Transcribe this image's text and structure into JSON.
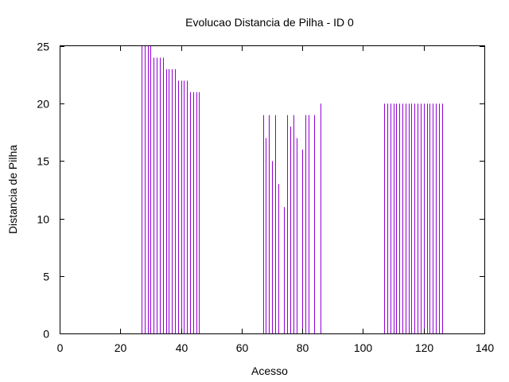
{
  "chart_data": {
    "type": "bar",
    "style": "impulses",
    "title": "Evolucao Distancia de Pilha - ID 0",
    "xlabel": "Acesso",
    "ylabel": "Distancia de Pilha",
    "xlim": [
      0,
      140
    ],
    "ylim": [
      0,
      25
    ],
    "xticks": [
      0,
      20,
      40,
      60,
      80,
      100,
      120,
      140
    ],
    "yticks": [
      0,
      5,
      10,
      15,
      20,
      25
    ],
    "grid": false,
    "legend": "none",
    "series_color": "#9400d3",
    "points": [
      {
        "x": 27,
        "y": 25
      },
      {
        "x": 28,
        "y": 25
      },
      {
        "x": 29,
        "y": 25
      },
      {
        "x": 30,
        "y": 25
      },
      {
        "x": 31,
        "y": 24
      },
      {
        "x": 32,
        "y": 24
      },
      {
        "x": 33,
        "y": 24
      },
      {
        "x": 34,
        "y": 24
      },
      {
        "x": 35,
        "y": 23
      },
      {
        "x": 36,
        "y": 23
      },
      {
        "x": 37,
        "y": 23
      },
      {
        "x": 38,
        "y": 23
      },
      {
        "x": 39,
        "y": 22
      },
      {
        "x": 40,
        "y": 22
      },
      {
        "x": 41,
        "y": 22
      },
      {
        "x": 42,
        "y": 22
      },
      {
        "x": 43,
        "y": 21
      },
      {
        "x": 44,
        "y": 21
      },
      {
        "x": 45,
        "y": 21
      },
      {
        "x": 46,
        "y": 21
      },
      {
        "x": 67,
        "y": 19
      },
      {
        "x": 68,
        "y": 17
      },
      {
        "x": 69,
        "y": 19
      },
      {
        "x": 70,
        "y": 15
      },
      {
        "x": 71,
        "y": 19
      },
      {
        "x": 72,
        "y": 13
      },
      {
        "x": 74,
        "y": 11
      },
      {
        "x": 75,
        "y": 19
      },
      {
        "x": 76,
        "y": 18
      },
      {
        "x": 77,
        "y": 19
      },
      {
        "x": 78,
        "y": 17
      },
      {
        "x": 80,
        "y": 16
      },
      {
        "x": 81,
        "y": 19
      },
      {
        "x": 82,
        "y": 19
      },
      {
        "x": 84,
        "y": 19
      },
      {
        "x": 86,
        "y": 20
      },
      {
        "x": 107,
        "y": 20
      },
      {
        "x": 108,
        "y": 20
      },
      {
        "x": 109,
        "y": 20
      },
      {
        "x": 110,
        "y": 20
      },
      {
        "x": 111,
        "y": 20
      },
      {
        "x": 112,
        "y": 20
      },
      {
        "x": 113,
        "y": 20
      },
      {
        "x": 114,
        "y": 20
      },
      {
        "x": 115,
        "y": 20
      },
      {
        "x": 116,
        "y": 20
      },
      {
        "x": 117,
        "y": 20
      },
      {
        "x": 118,
        "y": 20
      },
      {
        "x": 119,
        "y": 20
      },
      {
        "x": 120,
        "y": 20
      },
      {
        "x": 121,
        "y": 20
      },
      {
        "x": 122,
        "y": 20
      },
      {
        "x": 123,
        "y": 20
      },
      {
        "x": 124,
        "y": 20
      },
      {
        "x": 125,
        "y": 20
      },
      {
        "x": 126,
        "y": 20
      }
    ]
  }
}
